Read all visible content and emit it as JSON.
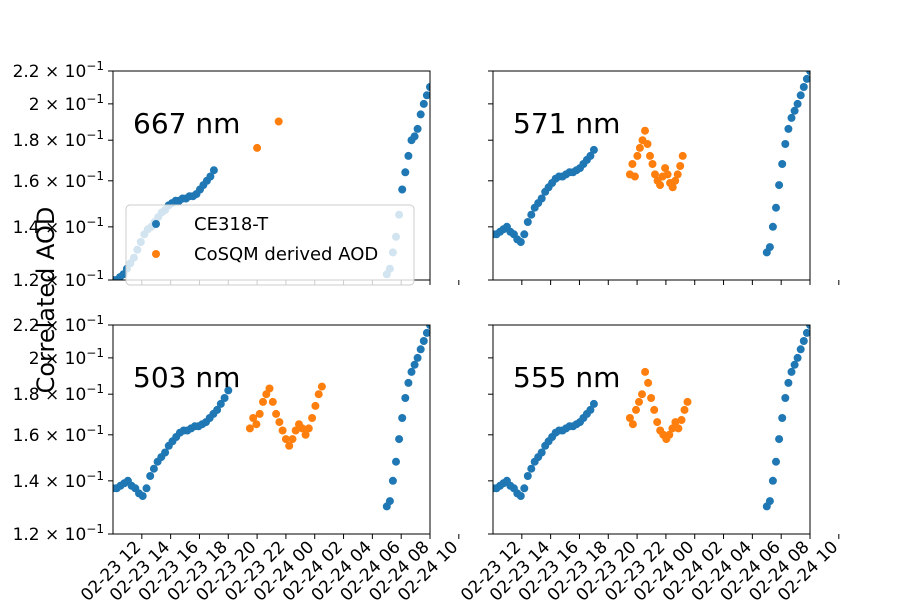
{
  "figure": {
    "ylabel": "Correlated AOD"
  },
  "legend": {
    "entries": [
      {
        "label": "CE318-T",
        "color": "#1f77b4"
      },
      {
        "label": "CoSQM derived AOD",
        "color": "#ff7f0e"
      }
    ]
  },
  "axes": {
    "xlim": [
      "2019-02-23 10:00",
      "2019-02-24 08:00"
    ],
    "ylim": [
      0.12,
      0.22
    ],
    "yscale": "log",
    "xtick_labels": [
      "02-23 12",
      "02-23 14",
      "02-23 16",
      "02-23 18",
      "02-23 20",
      "02-23 22",
      "02-24 00",
      "02-24 02",
      "02-24 04",
      "02-24 06",
      "02-24 08",
      "02-24 10"
    ],
    "ytick_labels": [
      {
        "mantissa": "1.2",
        "value": 0.12
      },
      {
        "mantissa": "1.4",
        "value": 0.14
      },
      {
        "mantissa": "1.6",
        "value": 0.16
      },
      {
        "mantissa": "1.8",
        "value": 0.18
      },
      {
        "mantissa": "2",
        "value": 0.2
      },
      {
        "mantissa": "2.2",
        "value": 0.22
      }
    ],
    "ytick_base": "10",
    "ytick_exp": "−1"
  },
  "chart_data": [
    {
      "type": "scatter",
      "title": "667 nm",
      "legend": "center-left",
      "series": [
        {
          "name": "CE318-T",
          "color": "#1f77b4",
          "segments": [
            {
              "t0": "2019-02-23 10:00",
              "t1": "2019-02-23 17:00",
              "y": [
                0.12,
                0.12,
                0.121,
                0.122,
                0.124,
                0.126,
                0.128,
                0.131,
                0.134,
                0.137,
                0.139,
                0.14,
                0.142,
                0.144,
                0.146,
                0.147,
                0.149,
                0.15,
                0.151,
                0.151,
                0.152,
                0.152,
                0.153,
                0.153,
                0.154,
                0.156,
                0.158,
                0.16,
                0.162,
                0.165
              ]
            },
            {
              "t0": "2019-02-24 05:00",
              "t1": "2019-02-24 08:00",
              "y": [
                0.122,
                0.124,
                0.13,
                0.136,
                0.145,
                0.156,
                0.164,
                0.172,
                0.18,
                0.182,
                0.186,
                0.194,
                0.2,
                0.205,
                0.21
              ]
            }
          ]
        },
        {
          "name": "CoSQM derived AOD",
          "color": "#ff7f0e",
          "points": [
            {
              "t": "2019-02-23 20:00",
              "y": 0.176
            },
            {
              "t": "2019-02-23 21:30",
              "y": 0.19
            }
          ]
        }
      ]
    },
    {
      "type": "scatter",
      "title": "571 nm",
      "series": [
        {
          "name": "CE318-T",
          "color": "#1f77b4",
          "segments": [
            {
              "t0": "2019-02-23 10:00",
              "t1": "2019-02-23 17:00",
              "y": [
                0.137,
                0.137,
                0.138,
                0.139,
                0.14,
                0.138,
                0.137,
                0.135,
                0.134,
                0.137,
                0.142,
                0.145,
                0.148,
                0.15,
                0.152,
                0.155,
                0.157,
                0.159,
                0.161,
                0.162,
                0.162,
                0.163,
                0.164,
                0.164,
                0.165,
                0.166,
                0.168,
                0.17,
                0.172,
                0.175
              ]
            },
            {
              "t0": "2019-02-24 05:00",
              "t1": "2019-02-24 08:00",
              "y": [
                0.13,
                0.132,
                0.14,
                0.148,
                0.158,
                0.168,
                0.178,
                0.186,
                0.192,
                0.196,
                0.2,
                0.205,
                0.21,
                0.215,
                0.22
              ]
            }
          ]
        },
        {
          "name": "CoSQM derived AOD",
          "color": "#ff7f0e",
          "segments": [
            {
              "t0": "2019-02-23 19:30",
              "t1": "2019-02-23 23:10",
              "y": [
                0.163,
                0.168,
                0.162,
                0.172,
                0.176,
                0.18,
                0.185,
                0.178,
                0.172,
                0.168,
                0.163,
                0.16,
                0.158,
                0.162,
                0.166,
                0.163,
                0.159,
                0.157,
                0.16,
                0.163,
                0.167,
                0.172
              ]
            }
          ]
        }
      ]
    },
    {
      "type": "scatter",
      "title": "503 nm",
      "series": [
        {
          "name": "CE318-T",
          "color": "#1f77b4",
          "segments": [
            {
              "t0": "2019-02-23 10:00",
              "t1": "2019-02-23 18:00",
              "y": [
                0.137,
                0.137,
                0.138,
                0.139,
                0.14,
                0.138,
                0.137,
                0.135,
                0.134,
                0.137,
                0.142,
                0.145,
                0.148,
                0.15,
                0.152,
                0.155,
                0.157,
                0.159,
                0.161,
                0.162,
                0.162,
                0.163,
                0.164,
                0.164,
                0.165,
                0.166,
                0.168,
                0.17,
                0.172,
                0.175,
                0.178,
                0.182
              ]
            },
            {
              "t0": "2019-02-24 05:00",
              "t1": "2019-02-24 08:00",
              "y": [
                0.13,
                0.132,
                0.14,
                0.148,
                0.158,
                0.168,
                0.178,
                0.186,
                0.192,
                0.196,
                0.2,
                0.205,
                0.21,
                0.215,
                0.22
              ]
            }
          ]
        },
        {
          "name": "CoSQM derived AOD",
          "color": "#ff7f0e",
          "segments": [
            {
              "t0": "2019-02-23 19:30",
              "t1": "2019-02-24 00:30",
              "y": [
                0.163,
                0.168,
                0.165,
                0.17,
                0.176,
                0.18,
                0.183,
                0.176,
                0.17,
                0.166,
                0.162,
                0.158,
                0.155,
                0.158,
                0.162,
                0.165,
                0.163,
                0.16,
                0.163,
                0.168,
                0.174,
                0.18,
                0.184
              ]
            }
          ]
        }
      ]
    },
    {
      "type": "scatter",
      "title": "555 nm",
      "series": [
        {
          "name": "CE318-T",
          "color": "#1f77b4",
          "segments": [
            {
              "t0": "2019-02-23 10:00",
              "t1": "2019-02-23 17:00",
              "y": [
                0.137,
                0.137,
                0.138,
                0.139,
                0.14,
                0.138,
                0.137,
                0.135,
                0.134,
                0.137,
                0.142,
                0.145,
                0.148,
                0.15,
                0.152,
                0.155,
                0.157,
                0.159,
                0.161,
                0.162,
                0.162,
                0.163,
                0.164,
                0.164,
                0.165,
                0.166,
                0.168,
                0.17,
                0.172,
                0.175
              ]
            },
            {
              "t0": "2019-02-24 05:00",
              "t1": "2019-02-24 08:00",
              "y": [
                0.13,
                0.132,
                0.14,
                0.148,
                0.158,
                0.168,
                0.178,
                0.186,
                0.192,
                0.196,
                0.2,
                0.205,
                0.21,
                0.215,
                0.22
              ]
            }
          ]
        },
        {
          "name": "CoSQM derived AOD",
          "color": "#ff7f0e",
          "segments": [
            {
              "t0": "2019-02-23 19:30",
              "t1": "2019-02-23 23:30",
              "y": [
                0.168,
                0.165,
                0.172,
                0.176,
                0.18,
                0.192,
                0.186,
                0.178,
                0.172,
                0.166,
                0.162,
                0.16,
                0.158,
                0.16,
                0.163,
                0.166,
                0.163,
                0.167,
                0.172,
                0.176
              ]
            }
          ]
        }
      ]
    }
  ]
}
